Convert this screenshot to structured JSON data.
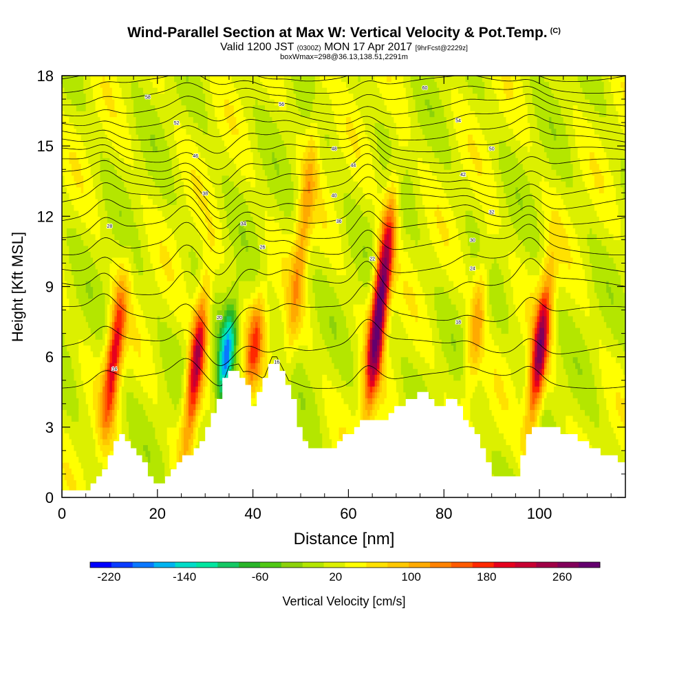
{
  "chart_data": {
    "type": "heatmap",
    "title": "Wind-Parallel Section at Max W: Vertical Velocity & Pot.Temp.",
    "title_badge": "(C)",
    "subtitle_main": "Valid 1200 JST",
    "subtitle_small_1": "(0300Z)",
    "subtitle_date": "MON 17 Apr 2017",
    "subtitle_small_2": "[9hrFcst@2229z]",
    "subtitle_2": "boxWmax=298@36.13,138.51,2291m",
    "xlabel": "Distance [nm]",
    "ylabel": "Height [Kft MSL]",
    "xlim": [
      0,
      118
    ],
    "ylim": [
      0,
      18
    ],
    "x_ticks": [
      "0",
      "20",
      "40",
      "60",
      "80",
      "100"
    ],
    "y_ticks": [
      "0",
      "3",
      "6",
      "9",
      "12",
      "15",
      "18"
    ],
    "colorbar": {
      "label": "Vertical Velocity [cm/s]",
      "tick_labels": [
        "-220",
        "-140",
        "-60",
        "20",
        "100",
        "180",
        "260"
      ],
      "tick_values": [
        -220,
        -140,
        -60,
        20,
        100,
        180,
        260
      ],
      "range": [
        -240,
        300
      ],
      "colors": [
        "#0000ff",
        "#0a3cff",
        "#0a78ff",
        "#00b4f0",
        "#00dcc8",
        "#00e6a0",
        "#14c864",
        "#28b428",
        "#50c814",
        "#8cd20a",
        "#b4e600",
        "#dcf000",
        "#ffff00",
        "#ffe100",
        "#ffc800",
        "#ffaa00",
        "#ff8200",
        "#ff5a00",
        "#ff2800",
        "#e6001e",
        "#c80032",
        "#a00046",
        "#82005a",
        "#64006e"
      ]
    },
    "updrafts": [
      {
        "x": 9,
        "peak": 190,
        "z_lo": 2.5,
        "z_hi": 9.5
      },
      {
        "x": 26,
        "peak": 220,
        "z_lo": 1.8,
        "z_hi": 9.5
      },
      {
        "x": 33,
        "peak": -190,
        "z_lo": 3.5,
        "z_hi": 8.5
      },
      {
        "x": 39,
        "peak": 130,
        "z_lo": 4.0,
        "z_hi": 9.0
      },
      {
        "x": 47,
        "peak": 90,
        "z_lo": 5.0,
        "z_hi": 17.0
      },
      {
        "x": 64,
        "peak": 298,
        "z_lo": 3.5,
        "z_hi": 13.0
      },
      {
        "x": 85,
        "peak": 90,
        "z_lo": 4.0,
        "z_hi": 11.0
      },
      {
        "x": 98,
        "peak": 230,
        "z_lo": 2.5,
        "z_hi": 10.0
      }
    ],
    "terrain": {
      "x": [
        0,
        5,
        9,
        11,
        12,
        13,
        17,
        19,
        21,
        23,
        25,
        27,
        28,
        30,
        31,
        33,
        35,
        37,
        39,
        40,
        42,
        44,
        45,
        47,
        49,
        50,
        51,
        53,
        55,
        56,
        58,
        60,
        62,
        64,
        66,
        68,
        70,
        72,
        75,
        77,
        79,
        80,
        82,
        84,
        86,
        88,
        90,
        91,
        93,
        95,
        96,
        97,
        98,
        100,
        102,
        104,
        106,
        107,
        109,
        111,
        113,
        115,
        117,
        118
      ],
      "z": [
        0.3,
        0.3,
        1.2,
        2.1,
        2.6,
        2.6,
        1.5,
        0.8,
        0.6,
        1.2,
        1.7,
        1.7,
        2.0,
        2.7,
        3.1,
        4.3,
        5.4,
        5.5,
        4.8,
        3.9,
        4.7,
        5.8,
        5.8,
        5.0,
        3.9,
        2.6,
        2.4,
        2.1,
        2.0,
        2.0,
        2.2,
        2.7,
        3.1,
        3.3,
        3.1,
        3.4,
        3.8,
        4.1,
        4.4,
        4.4,
        3.9,
        3.9,
        4.3,
        3.6,
        3.0,
        2.3,
        1.3,
        0.8,
        0.8,
        0.8,
        1.3,
        1.9,
        2.8,
        2.9,
        2.9,
        2.9,
        2.8,
        2.6,
        2.4,
        2.1,
        1.9,
        1.7,
        1.6,
        1.6
      ]
    },
    "theta_contours": [
      {
        "label": "14",
        "base": 5.0,
        "lx": 11,
        "ly": 5.5
      },
      {
        "label": "16",
        "base": 6.4,
        "lx": 45,
        "ly": 5.8
      },
      {
        "label": "18",
        "base": 7.8,
        "lx": 83,
        "ly": 7.5
      },
      {
        "label": "20",
        "base": 9.0,
        "lx": 33,
        "ly": 7.7
      },
      {
        "label": "22",
        "base": 9.9,
        "lx": 65,
        "ly": 10.2
      },
      {
        "label": "24",
        "base": 10.7,
        "lx": 86,
        "ly": 9.8
      },
      {
        "label": "26",
        "base": 11.4,
        "lx": 42,
        "ly": 10.7
      },
      {
        "label": "28",
        "base": 12.0,
        "lx": 10,
        "ly": 11.6
      },
      {
        "label": "30",
        "base": 12.6,
        "lx": 86,
        "ly": 11.0
      },
      {
        "label": "32",
        "base": 13.1,
        "lx": 90,
        "ly": 12.2
      },
      {
        "label": "34",
        "base": 13.6,
        "lx": 38,
        "ly": 11.7
      },
      {
        "label": "36",
        "base": 14.1,
        "lx": 58,
        "ly": 11.8
      },
      {
        "label": "38",
        "base": 14.6,
        "lx": 30,
        "ly": 13.0
      },
      {
        "label": "40",
        "base": 15.1,
        "lx": 57,
        "ly": 12.9
      },
      {
        "label": "42",
        "base": 15.6,
        "lx": 84,
        "ly": 13.8
      },
      {
        "label": "44",
        "base": 16.1,
        "lx": 61,
        "ly": 14.2
      },
      {
        "label": "46",
        "base": 16.6,
        "lx": 28,
        "ly": 14.6
      },
      {
        "label": "48",
        "base": 17.1,
        "lx": 57,
        "ly": 14.9
      },
      {
        "label": "50",
        "base": 17.6,
        "lx": 90,
        "ly": 14.9
      },
      {
        "label": "52",
        "base": 18.1,
        "lx": 24,
        "ly": 16.0
      },
      {
        "label": "54",
        "base": 18.6,
        "lx": 83,
        "ly": 16.1
      },
      {
        "label": "56",
        "base": 19.1,
        "lx": 46,
        "ly": 16.8
      },
      {
        "label": "58",
        "base": 19.6,
        "lx": 18,
        "ly": 17.1
      },
      {
        "label": "60",
        "base": 20.1,
        "lx": 76,
        "ly": 17.5
      }
    ]
  }
}
